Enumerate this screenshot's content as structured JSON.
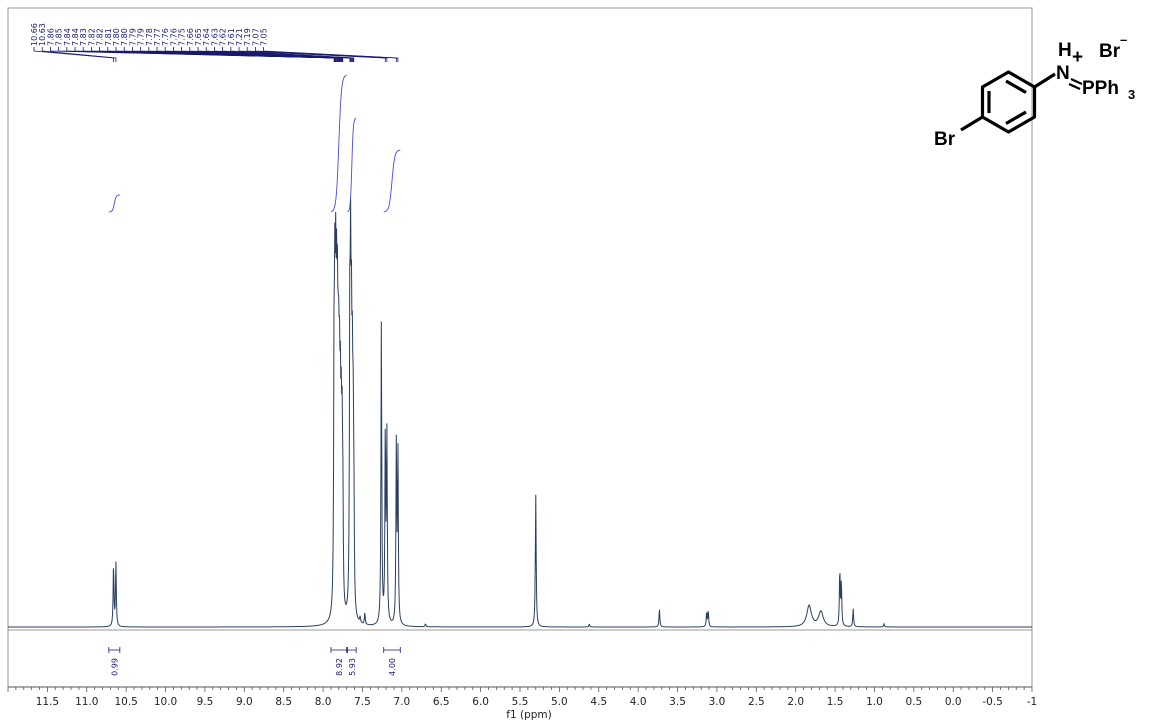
{
  "chart_data": {
    "type": "line",
    "xlabel": "f1 (ppm)",
    "xlim": [
      12.0,
      -1.0
    ],
    "x_reversed": true,
    "x_ticks": [
      "11.5",
      "11.0",
      "10.5",
      "10.0",
      "9.5",
      "9.0",
      "8.5",
      "8.0",
      "7.5",
      "7.0",
      "6.5",
      "6.0",
      "5.5",
      "5.0",
      "4.5",
      "4.0",
      "3.5",
      "3.0",
      "2.5",
      "2.0",
      "1.5",
      "1.0",
      "0.5",
      "0.0",
      "-0.5",
      "-1"
    ],
    "peak_labels": [
      "10.66",
      "10.63",
      "7.86",
      "7.85",
      "7.84",
      "7.84",
      "7.83",
      "7.82",
      "7.82",
      "7.81",
      "7.80",
      "7.80",
      "7.79",
      "7.79",
      "7.78",
      "7.77",
      "7.76",
      "7.76",
      "7.75",
      "7.66",
      "7.65",
      "7.64",
      "7.63",
      "7.62",
      "7.61",
      "7.21",
      "7.19",
      "7.07",
      "7.05"
    ],
    "peaks": [
      {
        "ppm": 10.66,
        "h": 0.21
      },
      {
        "ppm": 10.63,
        "h": 0.21
      },
      {
        "ppm": 7.86,
        "h": 0.83
      },
      {
        "ppm": 7.85,
        "h": 0.8
      },
      {
        "ppm": 7.84,
        "h": 0.78
      },
      {
        "ppm": 7.83,
        "h": 0.72
      },
      {
        "ppm": 7.82,
        "h": 0.75
      },
      {
        "ppm": 7.81,
        "h": 0.6
      },
      {
        "ppm": 7.8,
        "h": 0.62
      },
      {
        "ppm": 7.79,
        "h": 0.55
      },
      {
        "ppm": 7.78,
        "h": 0.5
      },
      {
        "ppm": 7.77,
        "h": 0.45
      },
      {
        "ppm": 7.76,
        "h": 0.48
      },
      {
        "ppm": 7.75,
        "h": 0.4
      },
      {
        "ppm": 7.66,
        "h": 0.93
      },
      {
        "ppm": 7.65,
        "h": 0.9
      },
      {
        "ppm": 7.64,
        "h": 0.68
      },
      {
        "ppm": 7.63,
        "h": 0.6
      },
      {
        "ppm": 7.62,
        "h": 0.55
      },
      {
        "ppm": 7.61,
        "h": 0.4
      },
      {
        "ppm": 7.26,
        "h": 1.0
      },
      {
        "ppm": 7.21,
        "h": 0.64
      },
      {
        "ppm": 7.19,
        "h": 0.61
      },
      {
        "ppm": 7.07,
        "h": 0.6
      },
      {
        "ppm": 7.05,
        "h": 0.57
      },
      {
        "ppm": 7.53,
        "h": 0.02
      },
      {
        "ppm": 7.47,
        "h": 0.04
      },
      {
        "ppm": 6.7,
        "h": 0.01
      },
      {
        "ppm": 5.3,
        "h": 0.44
      },
      {
        "ppm": 4.62,
        "h": 0.01
      },
      {
        "ppm": 3.73,
        "h": 0.06
      },
      {
        "ppm": 3.13,
        "h": 0.05
      },
      {
        "ppm": 3.11,
        "h": 0.05
      },
      {
        "ppm": 1.83,
        "h": 0.07
      },
      {
        "ppm": 1.68,
        "h": 0.05
      },
      {
        "ppm": 1.44,
        "h": 0.19
      },
      {
        "ppm": 1.42,
        "h": 0.14
      },
      {
        "ppm": 1.27,
        "h": 0.06
      },
      {
        "ppm": 0.88,
        "h": 0.01
      }
    ],
    "integrals": [
      {
        "from": 10.72,
        "to": 10.58,
        "value": "0.99"
      },
      {
        "from": 7.9,
        "to": 7.7,
        "value": "8.92"
      },
      {
        "from": 7.69,
        "to": 7.58,
        "value": "5.93"
      },
      {
        "from": 7.23,
        "to": 7.02,
        "value": "4.00"
      }
    ]
  },
  "structure": {
    "labels": {
      "br_substituent": "Br",
      "h_plus": "H",
      "plus": "+",
      "n": "N",
      "p_group": "PPh",
      "p_sub": "3",
      "counter_ion": "Br",
      "minus": "–"
    }
  }
}
